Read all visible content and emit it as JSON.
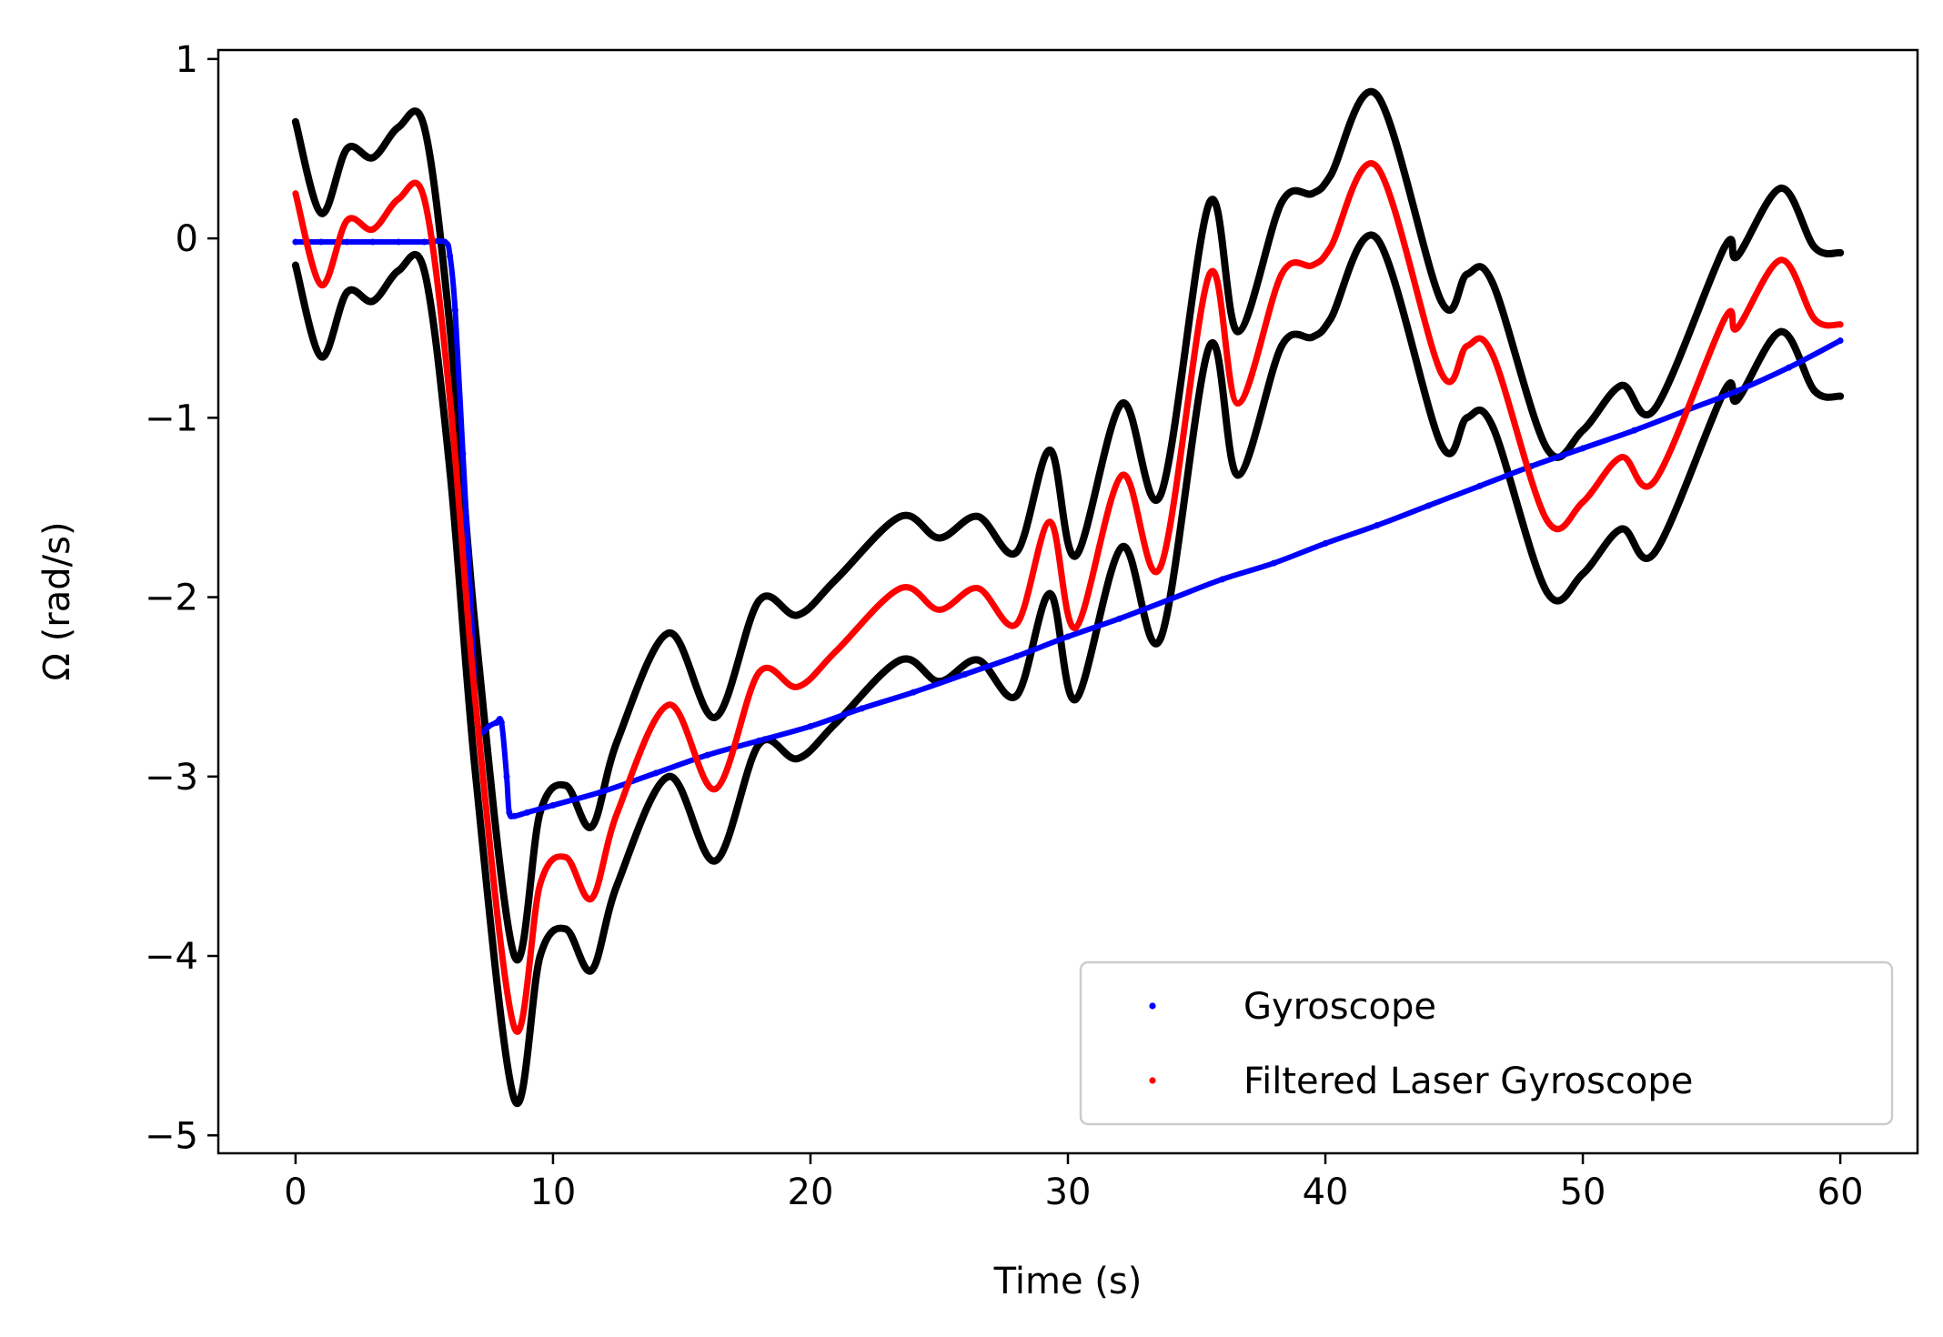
{
  "chart_data": {
    "type": "scatter",
    "xlabel": "Time (s)",
    "ylabel": "Ω (rad/s)",
    "xlim": [
      -3,
      63
    ],
    "ylim": [
      -5.1,
      1.05
    ],
    "xticks": [
      {
        "value": 0,
        "label": "0"
      },
      {
        "value": 10,
        "label": "10"
      },
      {
        "value": 20,
        "label": "20"
      },
      {
        "value": 30,
        "label": "30"
      },
      {
        "value": 40,
        "label": "40"
      },
      {
        "value": 50,
        "label": "50"
      },
      {
        "value": 60,
        "label": "60"
      }
    ],
    "yticks": [
      {
        "value": 1,
        "label": "1"
      },
      {
        "value": 0,
        "label": "0"
      },
      {
        "value": -1,
        "label": "−1"
      },
      {
        "value": -2,
        "label": "−2"
      },
      {
        "value": -3,
        "label": "−3"
      },
      {
        "value": -4,
        "label": "−4"
      },
      {
        "value": -5,
        "label": "−5"
      }
    ],
    "grid": false,
    "legend_position": "lower-right",
    "series": [
      {
        "name": "Gyroscope",
        "color": "#0000ff",
        "marker": "dot",
        "x": [
          0,
          1,
          2,
          3,
          4,
          5,
          5.8,
          6.0,
          6.2,
          6.5,
          6.8,
          7.0,
          7.2,
          7.5,
          7.8,
          8.0,
          8.2,
          8.3,
          8.5,
          9,
          10,
          12,
          14,
          16,
          18,
          20,
          22,
          24,
          26,
          28,
          30,
          32,
          34,
          36,
          38,
          40,
          42,
          44,
          46,
          48,
          50,
          52,
          54,
          56,
          58,
          60
        ],
        "y": [
          -0.02,
          -0.02,
          -0.02,
          -0.02,
          -0.02,
          -0.02,
          -0.02,
          -0.1,
          -0.4,
          -1.2,
          -2.0,
          -2.6,
          -2.75,
          -2.72,
          -2.7,
          -2.7,
          -3.0,
          -3.2,
          -3.22,
          -3.2,
          -3.16,
          -3.08,
          -2.98,
          -2.88,
          -2.8,
          -2.72,
          -2.62,
          -2.53,
          -2.43,
          -2.33,
          -2.22,
          -2.12,
          -2.01,
          -1.9,
          -1.81,
          -1.7,
          -1.6,
          -1.49,
          -1.38,
          -1.27,
          -1.17,
          -1.07,
          -0.96,
          -0.85,
          -0.72,
          -0.57
        ]
      },
      {
        "name": "Filtered Laser Gyroscope",
        "color": "#ff0000",
        "marker": "dot",
        "x": [
          0,
          1,
          2,
          3,
          4,
          5,
          6,
          7,
          8.5,
          9.5,
          10.5,
          11.5,
          12.5,
          14.5,
          16.3,
          18,
          19.5,
          21,
          23.5,
          25,
          26.5,
          28,
          29.3,
          30.3,
          32.1,
          33.6,
          35.5,
          36.6,
          38.3,
          39.5,
          40.2,
          42,
          44.5,
          45.5,
          46.5,
          48.6,
          50,
          51.5,
          52.8,
          55.5,
          56,
          57.7,
          59,
          60
        ],
        "y": [
          0.25,
          -0.26,
          0.1,
          0.05,
          0.22,
          0.22,
          -0.9,
          -2.6,
          -4.4,
          -3.6,
          -3.45,
          -3.68,
          -3.2,
          -2.6,
          -3.07,
          -2.42,
          -2.5,
          -2.3,
          -1.95,
          -2.07,
          -1.95,
          -2.15,
          -1.58,
          -2.17,
          -1.32,
          -1.83,
          -0.2,
          -0.92,
          -0.2,
          -0.15,
          -0.05,
          0.4,
          -0.75,
          -0.6,
          -0.65,
          -1.57,
          -1.47,
          -1.22,
          -1.35,
          -0.45,
          -0.5,
          -0.12,
          -0.45,
          -0.48
        ]
      },
      {
        "name": "",
        "color": "#000000",
        "marker": "dot",
        "x": [
          0,
          1,
          2,
          3,
          4,
          5,
          6,
          7,
          8.5,
          9.5,
          10.5,
          11.5,
          12.5,
          14.5,
          16.3,
          18,
          19.5,
          21,
          23.5,
          25,
          26.5,
          28,
          29.3,
          30.3,
          32.1,
          33.6,
          35.5,
          36.6,
          38.3,
          39.5,
          40.2,
          42,
          44.5,
          45.5,
          46.5,
          48.6,
          50,
          51.5,
          52.8,
          55.5,
          56,
          57.7,
          59,
          60
        ],
        "y": [
          0.65,
          0.14,
          0.5,
          0.45,
          0.62,
          0.62,
          -0.5,
          -2.2,
          -4.0,
          -3.2,
          -3.05,
          -3.28,
          -2.8,
          -2.2,
          -2.67,
          -2.02,
          -2.1,
          -1.9,
          -1.55,
          -1.67,
          -1.55,
          -1.75,
          -1.18,
          -1.77,
          -0.92,
          -1.43,
          0.2,
          -0.52,
          0.2,
          0.25,
          0.35,
          0.8,
          -0.35,
          -0.2,
          -0.25,
          -1.17,
          -1.07,
          -0.82,
          -0.95,
          -0.05,
          -0.1,
          0.28,
          -0.05,
          -0.08
        ]
      },
      {
        "name": "",
        "color": "#000000",
        "marker": "dot",
        "x": [
          0,
          1,
          2,
          3,
          4,
          5,
          6,
          7,
          8.5,
          9.5,
          10.5,
          11.5,
          12.5,
          14.5,
          16.3,
          18,
          19.5,
          21,
          23.5,
          25,
          26.5,
          28,
          29.3,
          30.3,
          32.1,
          33.6,
          35.5,
          36.6,
          38.3,
          39.5,
          40.2,
          42,
          44.5,
          45.5,
          46.5,
          48.6,
          50,
          51.5,
          52.8,
          55.5,
          56,
          57.7,
          59,
          60
        ],
        "y": [
          -0.15,
          -0.66,
          -0.3,
          -0.35,
          -0.18,
          -0.18,
          -1.3,
          -3.0,
          -4.8,
          -4.0,
          -3.85,
          -4.08,
          -3.6,
          -3.0,
          -3.47,
          -2.82,
          -2.9,
          -2.7,
          -2.35,
          -2.47,
          -2.35,
          -2.55,
          -1.98,
          -2.57,
          -1.72,
          -2.23,
          -0.6,
          -1.32,
          -0.6,
          -0.55,
          -0.45,
          0.0,
          -1.15,
          -1.0,
          -1.05,
          -1.97,
          -1.87,
          -1.62,
          -1.75,
          -0.85,
          -0.9,
          -0.52,
          -0.85,
          -0.88
        ]
      }
    ],
    "legend": [
      {
        "label": "Gyroscope",
        "color": "#0000ff"
      },
      {
        "label": "Filtered Laser Gyroscope",
        "color": "#ff0000"
      }
    ]
  }
}
